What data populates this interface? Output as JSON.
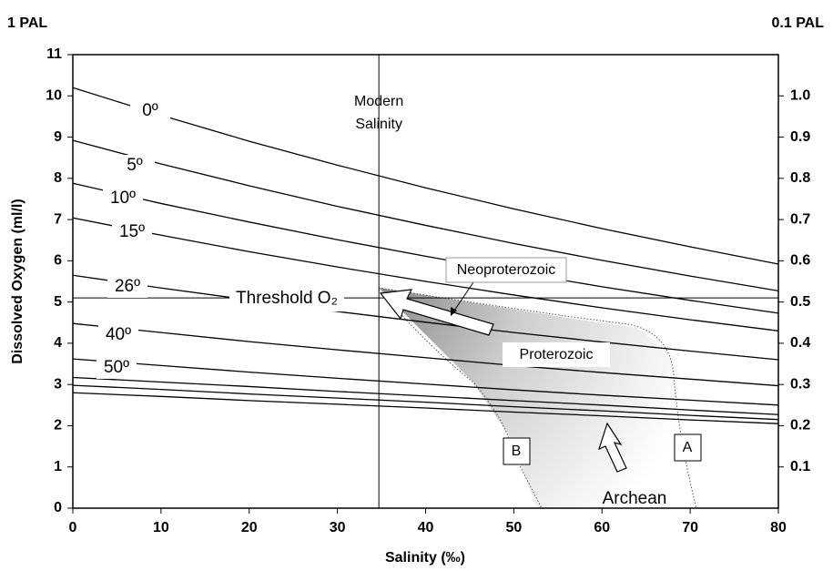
{
  "chart_data": {
    "type": "line",
    "x_label": "Salinity (‰)",
    "y_label": "Dissolved Oxygen (ml/l)",
    "y_top_label": "1 PAL",
    "y2_top_label": "0.1 PAL",
    "x": [
      0,
      10,
      20,
      30,
      40,
      50,
      60,
      70,
      80
    ],
    "series": [
      {
        "name": "0º",
        "color": "#000000",
        "values": [
          10.2,
          9.53,
          8.9,
          8.32,
          7.77,
          7.26,
          6.78,
          6.34,
          5.92
        ]
      },
      {
        "name": "5º",
        "color": "#000000",
        "values": [
          8.92,
          8.35,
          7.82,
          7.32,
          6.86,
          6.42,
          6.01,
          5.63,
          5.27
        ]
      },
      {
        "name": "10º",
        "color": "#000000",
        "values": [
          7.88,
          7.39,
          6.94,
          6.51,
          6.11,
          5.73,
          5.37,
          5.04,
          4.73
        ]
      },
      {
        "name": "15º",
        "color": "#000000",
        "values": [
          7.04,
          6.62,
          6.22,
          5.85,
          5.5,
          5.17,
          4.86,
          4.57,
          4.3
        ]
      },
      {
        "name": "26º",
        "color": "#000000",
        "values": [
          5.65,
          5.34,
          5.05,
          4.77,
          4.51,
          4.26,
          4.03,
          3.81,
          3.6
        ]
      },
      {
        "name": "40º",
        "color": "#000000",
        "values": [
          4.48,
          4.26,
          4.04,
          3.84,
          3.65,
          3.46,
          3.29,
          3.13,
          2.97
        ]
      },
      {
        "name": "50º",
        "color": "#000000",
        "values": [
          3.62,
          3.46,
          3.3,
          3.15,
          3.01,
          2.87,
          2.74,
          2.62,
          2.5
        ]
      },
      {
        "name": null,
        "color": "#000000",
        "values": [
          3.17,
          3.06,
          2.95,
          2.83,
          2.72,
          2.61,
          2.5,
          2.38,
          2.27
        ]
      },
      {
        "name": null,
        "color": "#000000",
        "values": [
          2.98,
          2.88,
          2.77,
          2.67,
          2.57,
          2.46,
          2.36,
          2.25,
          2.15
        ]
      },
      {
        "name": null,
        "color": "#000000",
        "values": [
          2.8,
          2.71,
          2.61,
          2.52,
          2.43,
          2.33,
          2.24,
          2.14,
          2.05
        ]
      }
    ],
    "xlim": [
      0,
      80
    ],
    "xticks": [
      0,
      10,
      20,
      30,
      40,
      50,
      60,
      70,
      80
    ],
    "ylim": [
      0,
      11
    ],
    "yticks": [
      0,
      1,
      2,
      3,
      4,
      5,
      6,
      7,
      8,
      9,
      10,
      11
    ],
    "y2lim": [
      0,
      1.1
    ],
    "y2ticks": [
      0.1,
      0.2,
      0.3,
      0.4,
      0.5,
      0.6,
      0.7,
      0.8,
      0.9,
      {
        "value": 1,
        "label": "1.0"
      }
    ],
    "vline": {
      "x": 34.7,
      "label": [
        "Modern",
        "Salinity"
      ]
    },
    "hline": {
      "y": 5.1,
      "label": "Threshold O₂"
    },
    "annotations": [
      "Neoproterozoic",
      "Proterozoic",
      "Archean",
      "A",
      "B"
    ]
  }
}
